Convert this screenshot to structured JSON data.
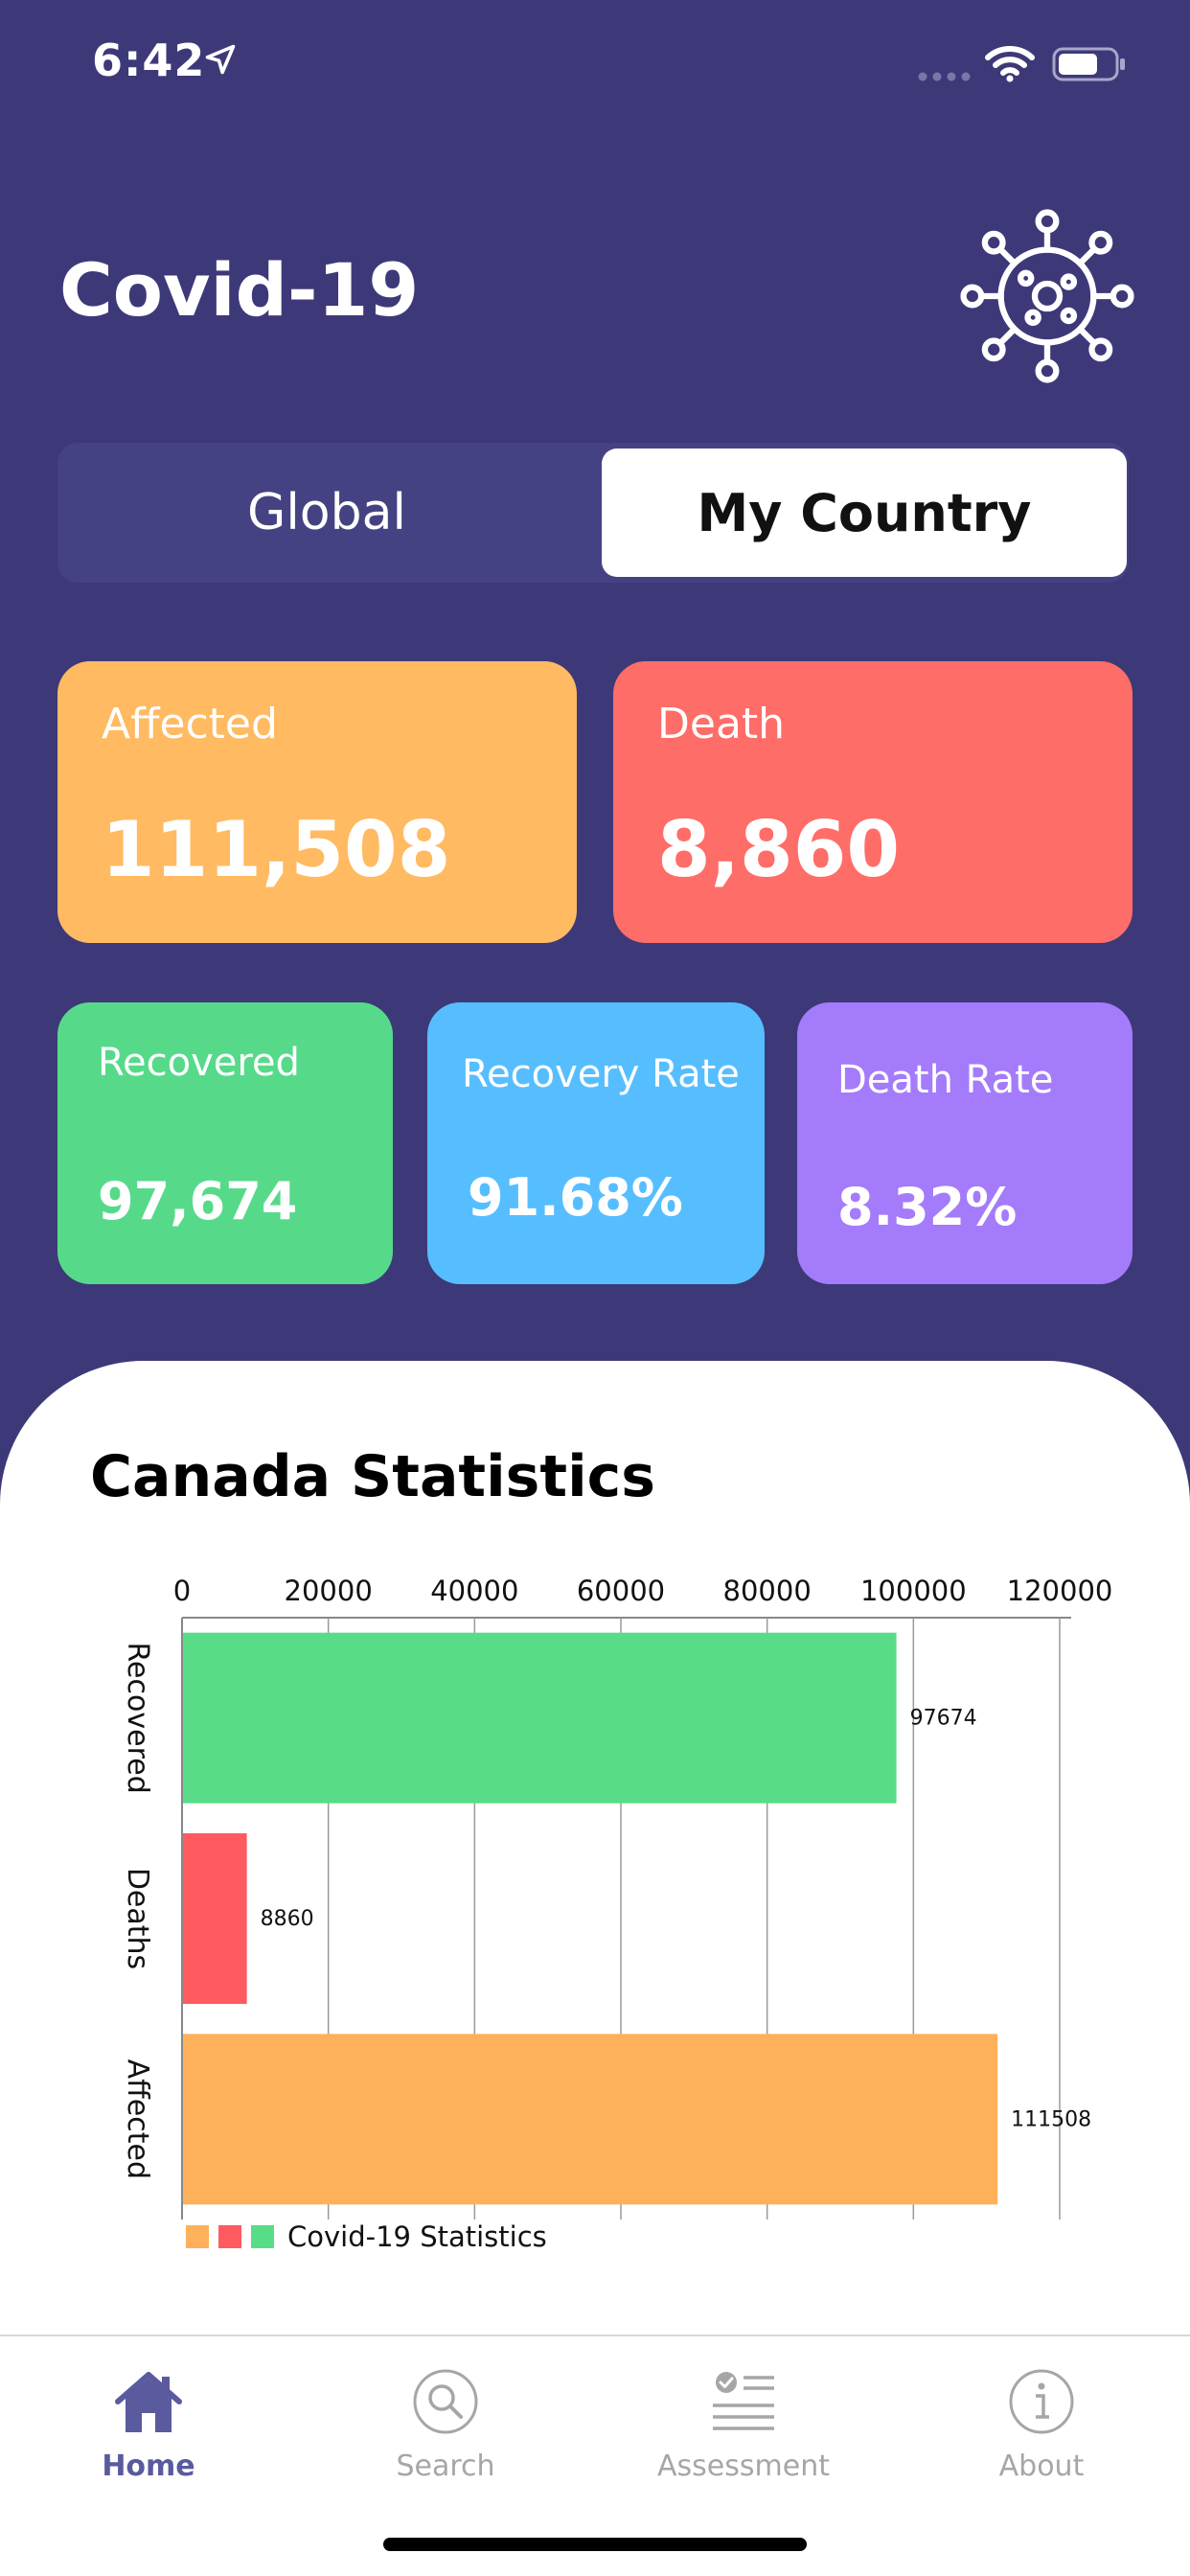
{
  "status_bar": {
    "time": "6:42",
    "icons": [
      "location-arrow-icon",
      "signal-icon",
      "wifi-icon",
      "battery-icon"
    ]
  },
  "header": {
    "title": "Covid-19",
    "logo_icon": "virus-icon"
  },
  "segments": {
    "global": "Global",
    "my_country": "My Country",
    "selected": "My Country"
  },
  "cards": {
    "affected": {
      "label": "Affected",
      "value": "111,508"
    },
    "death": {
      "label": "Death",
      "value": "8,860"
    },
    "recovered": {
      "label": "Recovered",
      "value": "97,674"
    },
    "recovery_rate": {
      "label": "Recovery Rate",
      "value": "91.68%"
    },
    "death_rate": {
      "label": "Death Rate",
      "value": "8.32%"
    }
  },
  "colors": {
    "background": "#3D3979",
    "affected": "#FFBA62",
    "death": "#FF6D68",
    "recovered": "#56DA8A",
    "recovery_rate": "#56BEFF",
    "death_rate": "#A47BFB",
    "tab_active": "#5A5A9E",
    "tab_inactive": "#A6A6A6"
  },
  "statistics": {
    "title": "Canada Statistics"
  },
  "chart_data": {
    "type": "bar",
    "orientation": "horizontal",
    "categories": [
      "Recovered",
      "Deaths",
      "Affected"
    ],
    "values": [
      97674,
      8860,
      111508
    ],
    "bar_colors": [
      "#58DC88",
      "#FF5A5F",
      "#FFB05A"
    ],
    "data_labels": [
      "97674",
      "8860",
      "111508"
    ],
    "x_ticks": [
      0,
      20000,
      40000,
      60000,
      80000,
      100000,
      120000
    ],
    "x_tick_labels": [
      "0",
      "20000",
      "40000",
      "60000",
      "80000",
      "100000",
      "120000"
    ],
    "xlim": [
      0,
      120000
    ],
    "x_axis_position": "top",
    "legend": "Covid-19 Statistics",
    "legend_placement": "bottom-left",
    "grid": true
  },
  "tabs": [
    {
      "label": "Home",
      "icon": "home-icon",
      "active": true
    },
    {
      "label": "Search",
      "icon": "search-icon",
      "active": false
    },
    {
      "label": "Assessment",
      "icon": "assessment-icon",
      "active": false
    },
    {
      "label": "About",
      "icon": "info-icon",
      "active": false
    }
  ]
}
